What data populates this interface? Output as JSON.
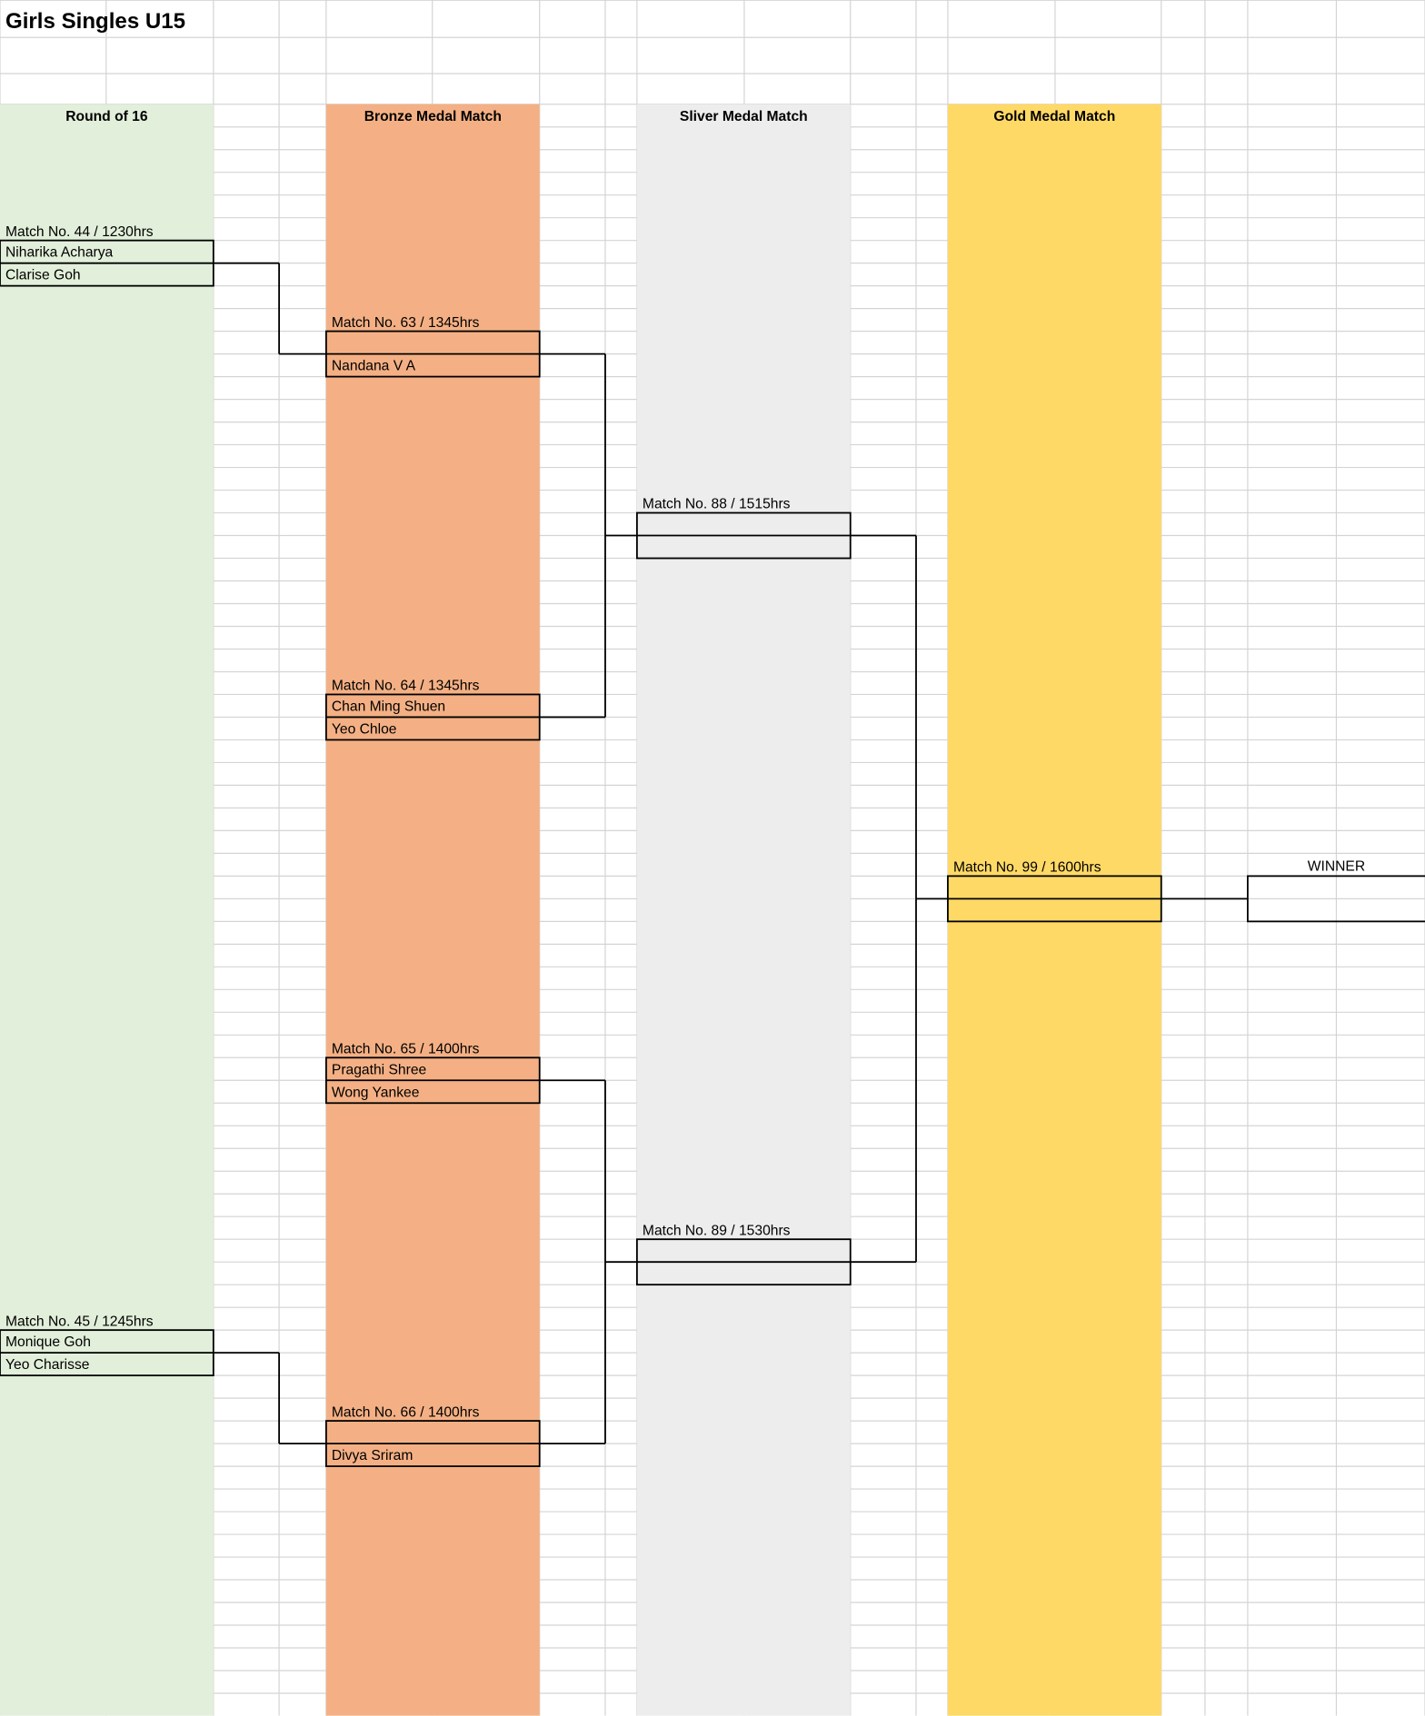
{
  "title": "Girls Singles U15",
  "rounds": [
    {
      "name": "Round of 16",
      "matches": [
        {
          "label": "Match No. 44 / 1230hrs",
          "players": [
            "Niharika Acharya",
            "Clarise Goh"
          ]
        },
        {
          "label": "Match No. 45 / 1245hrs",
          "players": [
            "Monique Goh",
            "Yeo Charisse"
          ]
        }
      ]
    },
    {
      "name": "Bronze Medal Match",
      "matches": [
        {
          "label": "Match No. 63 / 1345hrs",
          "players": [
            null,
            "Nandana V A"
          ]
        },
        {
          "label": "Match No. 64 / 1345hrs",
          "players": [
            "Chan Ming Shuen",
            "Yeo Chloe"
          ]
        },
        {
          "label": "Match No. 65 / 1400hrs",
          "players": [
            "Pragathi Shree",
            "Wong Yankee"
          ]
        },
        {
          "label": "Match No. 66 / 1400hrs",
          "players": [
            null,
            "Divya Sriram"
          ]
        }
      ]
    },
    {
      "name": "Sliver Medal Match",
      "matches": [
        {
          "label": "Match No. 88 / 1515hrs"
        },
        {
          "label": "Match No. 89 / 1530hrs"
        }
      ]
    },
    {
      "name": "Gold Medal Match",
      "matches": [
        {
          "label": "Match No. 99 / 1600hrs"
        }
      ]
    }
  ],
  "winner": "WINNER"
}
